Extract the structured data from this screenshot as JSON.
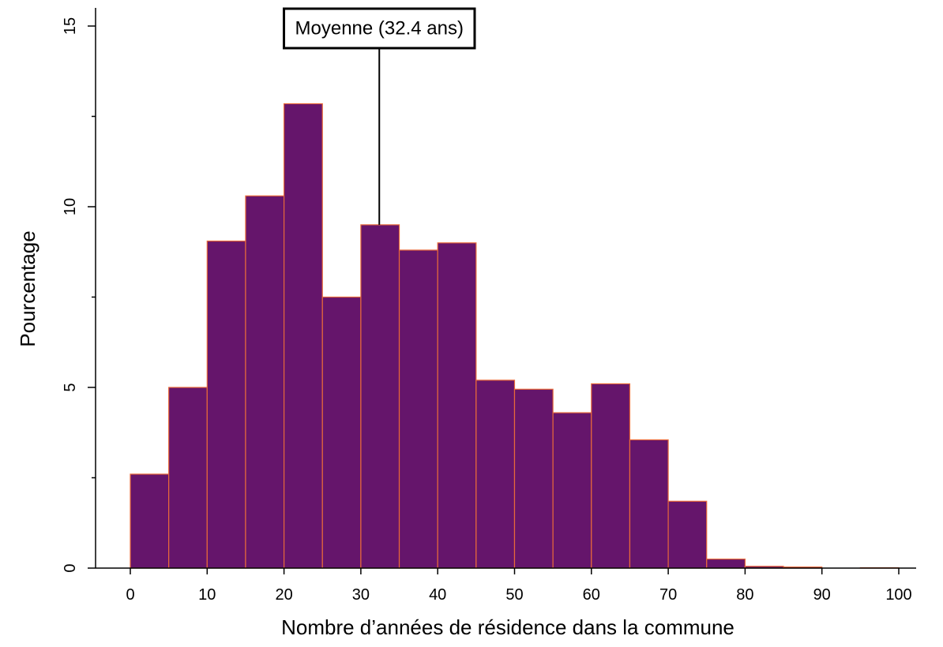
{
  "chart_data": {
    "type": "bar",
    "subtype": "histogram",
    "xlabel": "Nombre d’années de résidence dans la commune",
    "ylabel": "Pourcentage",
    "xlim": [
      0,
      100
    ],
    "ylim": [
      0,
      15
    ],
    "x_ticks": [
      "0",
      "10",
      "20",
      "30",
      "40",
      "50",
      "60",
      "70",
      "80",
      "90",
      "100"
    ],
    "y_ticks": [
      "0",
      "5",
      "10",
      "15"
    ],
    "grid": false,
    "bin_width": 5,
    "bins": [
      {
        "start": 0,
        "end": 5,
        "value": 2.6
      },
      {
        "start": 5,
        "end": 10,
        "value": 5.0
      },
      {
        "start": 10,
        "end": 15,
        "value": 9.05
      },
      {
        "start": 15,
        "end": 20,
        "value": 10.3
      },
      {
        "start": 20,
        "end": 25,
        "value": 12.85
      },
      {
        "start": 25,
        "end": 30,
        "value": 7.5
      },
      {
        "start": 30,
        "end": 35,
        "value": 9.5
      },
      {
        "start": 35,
        "end": 40,
        "value": 8.8
      },
      {
        "start": 40,
        "end": 45,
        "value": 9.0
      },
      {
        "start": 45,
        "end": 50,
        "value": 5.2
      },
      {
        "start": 50,
        "end": 55,
        "value": 4.95
      },
      {
        "start": 55,
        "end": 60,
        "value": 4.3
      },
      {
        "start": 60,
        "end": 65,
        "value": 5.1
      },
      {
        "start": 65,
        "end": 70,
        "value": 3.55
      },
      {
        "start": 70,
        "end": 75,
        "value": 1.85
      },
      {
        "start": 75,
        "end": 80,
        "value": 0.25
      },
      {
        "start": 80,
        "end": 85,
        "value": 0.05
      },
      {
        "start": 85,
        "end": 90,
        "value": 0.03
      },
      {
        "start": 90,
        "end": 95,
        "value": 0.0
      },
      {
        "start": 95,
        "end": 100,
        "value": 0.01
      }
    ],
    "annotation": {
      "label": "Moyenne (32.4 ans)",
      "x": 32.4
    },
    "colors": {
      "bar_fill": "#65156b",
      "bar_stroke": "#e8693a",
      "axis": "#000000",
      "background": "#ffffff"
    }
  }
}
